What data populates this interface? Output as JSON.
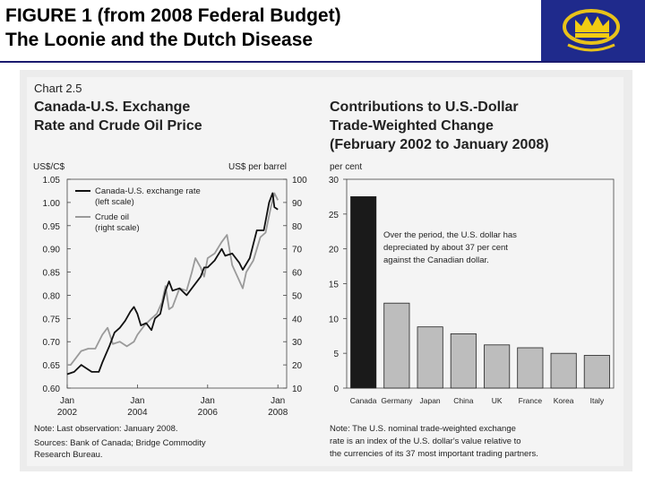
{
  "slide": {
    "title_line1": "FIGURE 1 (from 2008 Federal Budget)",
    "title_line2": "The Loonie and the Dutch Disease"
  },
  "logo": {
    "icon": "crown-icon",
    "color": "#1f2a8c"
  },
  "chart_data": [
    {
      "type": "line",
      "chart_label": "Chart 2.5",
      "title_line1": "Canada-U.S. Exchange",
      "title_line2": "Rate and Crude Oil Price",
      "ylabel_left": "US$/C$",
      "ylabel_right": "US$ per barrel",
      "ylim_left": [
        0.6,
        1.05
      ],
      "ylim_right": [
        10,
        100
      ],
      "yticks_left": [
        "1.05",
        "1.00",
        "0.95",
        "0.90",
        "0.85",
        "0.80",
        "0.75",
        "0.70",
        "0.65",
        "0.60"
      ],
      "yticks_right": [
        "100",
        "90",
        "80",
        "70",
        "60",
        "50",
        "40",
        "30",
        "20",
        "10"
      ],
      "xlim": [
        2002.0,
        2008.25
      ],
      "xticks": [
        {
          "x": 2002,
          "month": "Jan",
          "year": "2002"
        },
        {
          "x": 2004,
          "month": "Jan",
          "year": "2004"
        },
        {
          "x": 2006,
          "month": "Jan",
          "year": "2006"
        },
        {
          "x": 2008,
          "month": "Jan",
          "year": "2008"
        }
      ],
      "grid": false,
      "legend_position": "top-left",
      "series": [
        {
          "name": "Canada-U.S. exchange rate",
          "name_note": "(left scale)",
          "axis": "left",
          "color": "#111111",
          "x": [
            2002.0,
            2002.2,
            2002.4,
            2002.5,
            2002.7,
            2002.9,
            2003.0,
            2003.2,
            2003.35,
            2003.5,
            2003.65,
            2003.8,
            2003.9,
            2004.0,
            2004.1,
            2004.25,
            2004.4,
            2004.5,
            2004.65,
            2004.8,
            2004.9,
            2005.0,
            2005.2,
            2005.4,
            2005.6,
            2005.8,
            2005.9,
            2006.0,
            2006.2,
            2006.4,
            2006.5,
            2006.7,
            2006.9,
            2007.0,
            2007.2,
            2007.4,
            2007.6,
            2007.75,
            2007.85,
            2007.9,
            2008.0
          ],
          "y": [
            0.63,
            0.635,
            0.65,
            0.645,
            0.635,
            0.635,
            0.655,
            0.69,
            0.72,
            0.73,
            0.745,
            0.765,
            0.775,
            0.76,
            0.735,
            0.74,
            0.725,
            0.75,
            0.76,
            0.81,
            0.83,
            0.81,
            0.815,
            0.8,
            0.82,
            0.84,
            0.86,
            0.86,
            0.875,
            0.9,
            0.885,
            0.89,
            0.87,
            0.855,
            0.88,
            0.94,
            0.94,
            1.0,
            1.02,
            0.99,
            0.985
          ]
        },
        {
          "name": "Crude oil",
          "name_note": "(right scale)",
          "axis": "right",
          "color": "#9a9a9a",
          "x": [
            2002.0,
            2002.1,
            2002.25,
            2002.4,
            2002.6,
            2002.8,
            2003.0,
            2003.15,
            2003.3,
            2003.5,
            2003.7,
            2003.9,
            2004.0,
            2004.2,
            2004.4,
            2004.55,
            2004.7,
            2004.8,
            2004.9,
            2005.0,
            2005.2,
            2005.4,
            2005.55,
            2005.65,
            2005.8,
            2005.9,
            2006.0,
            2006.2,
            2006.4,
            2006.55,
            2006.7,
            2006.85,
            2007.0,
            2007.1,
            2007.3,
            2007.5,
            2007.65,
            2007.8,
            2007.9,
            2008.0
          ],
          "y": [
            20,
            20,
            23,
            26,
            27,
            27,
            33,
            36,
            29,
            30,
            28,
            30,
            33,
            37,
            40,
            42,
            47,
            54,
            44,
            45,
            53,
            52,
            60,
            66,
            62,
            58,
            66,
            68,
            73,
            76,
            63,
            58,
            53,
            60,
            65,
            75,
            77,
            88,
            94,
            91
          ]
        }
      ],
      "notes": [
        "Note: Last observation: January 2008.",
        "Sources: Bank of Canada; Bridge Commodity",
        "Research Bureau."
      ]
    },
    {
      "type": "bar",
      "title_line1": "Contributions to U.S.-Dollar",
      "title_line2": "Trade-Weighted Change",
      "title_line3": "(February 2002 to January 2008)",
      "ylabel": "per cent",
      "ylim": [
        0,
        30
      ],
      "yticks": [
        "30",
        "25",
        "20",
        "15",
        "10",
        "5",
        "0"
      ],
      "grid": false,
      "categories": [
        "Canada",
        "Germany",
        "Japan",
        "China",
        "UK",
        "France",
        "Korea",
        "Italy"
      ],
      "values": [
        27.5,
        12.2,
        8.8,
        7.8,
        6.2,
        5.8,
        5.0,
        4.7
      ],
      "bar_colors": [
        "#1a1a1a",
        "#bdbdbd",
        "#bdbdbd",
        "#bdbdbd",
        "#bdbdbd",
        "#bdbdbd",
        "#bdbdbd",
        "#bdbdbd"
      ],
      "annotation_lines": [
        "Over the period, the U.S. dollar has",
        "depreciated by about 37 per cent",
        "against the Canadian dollar."
      ],
      "notes": [
        "Note: The U.S. nominal trade-weighted exchange",
        "rate is an index of the U.S. dollar's value relative to",
        "the currencies of its 37 most important trading partners."
      ]
    }
  ]
}
